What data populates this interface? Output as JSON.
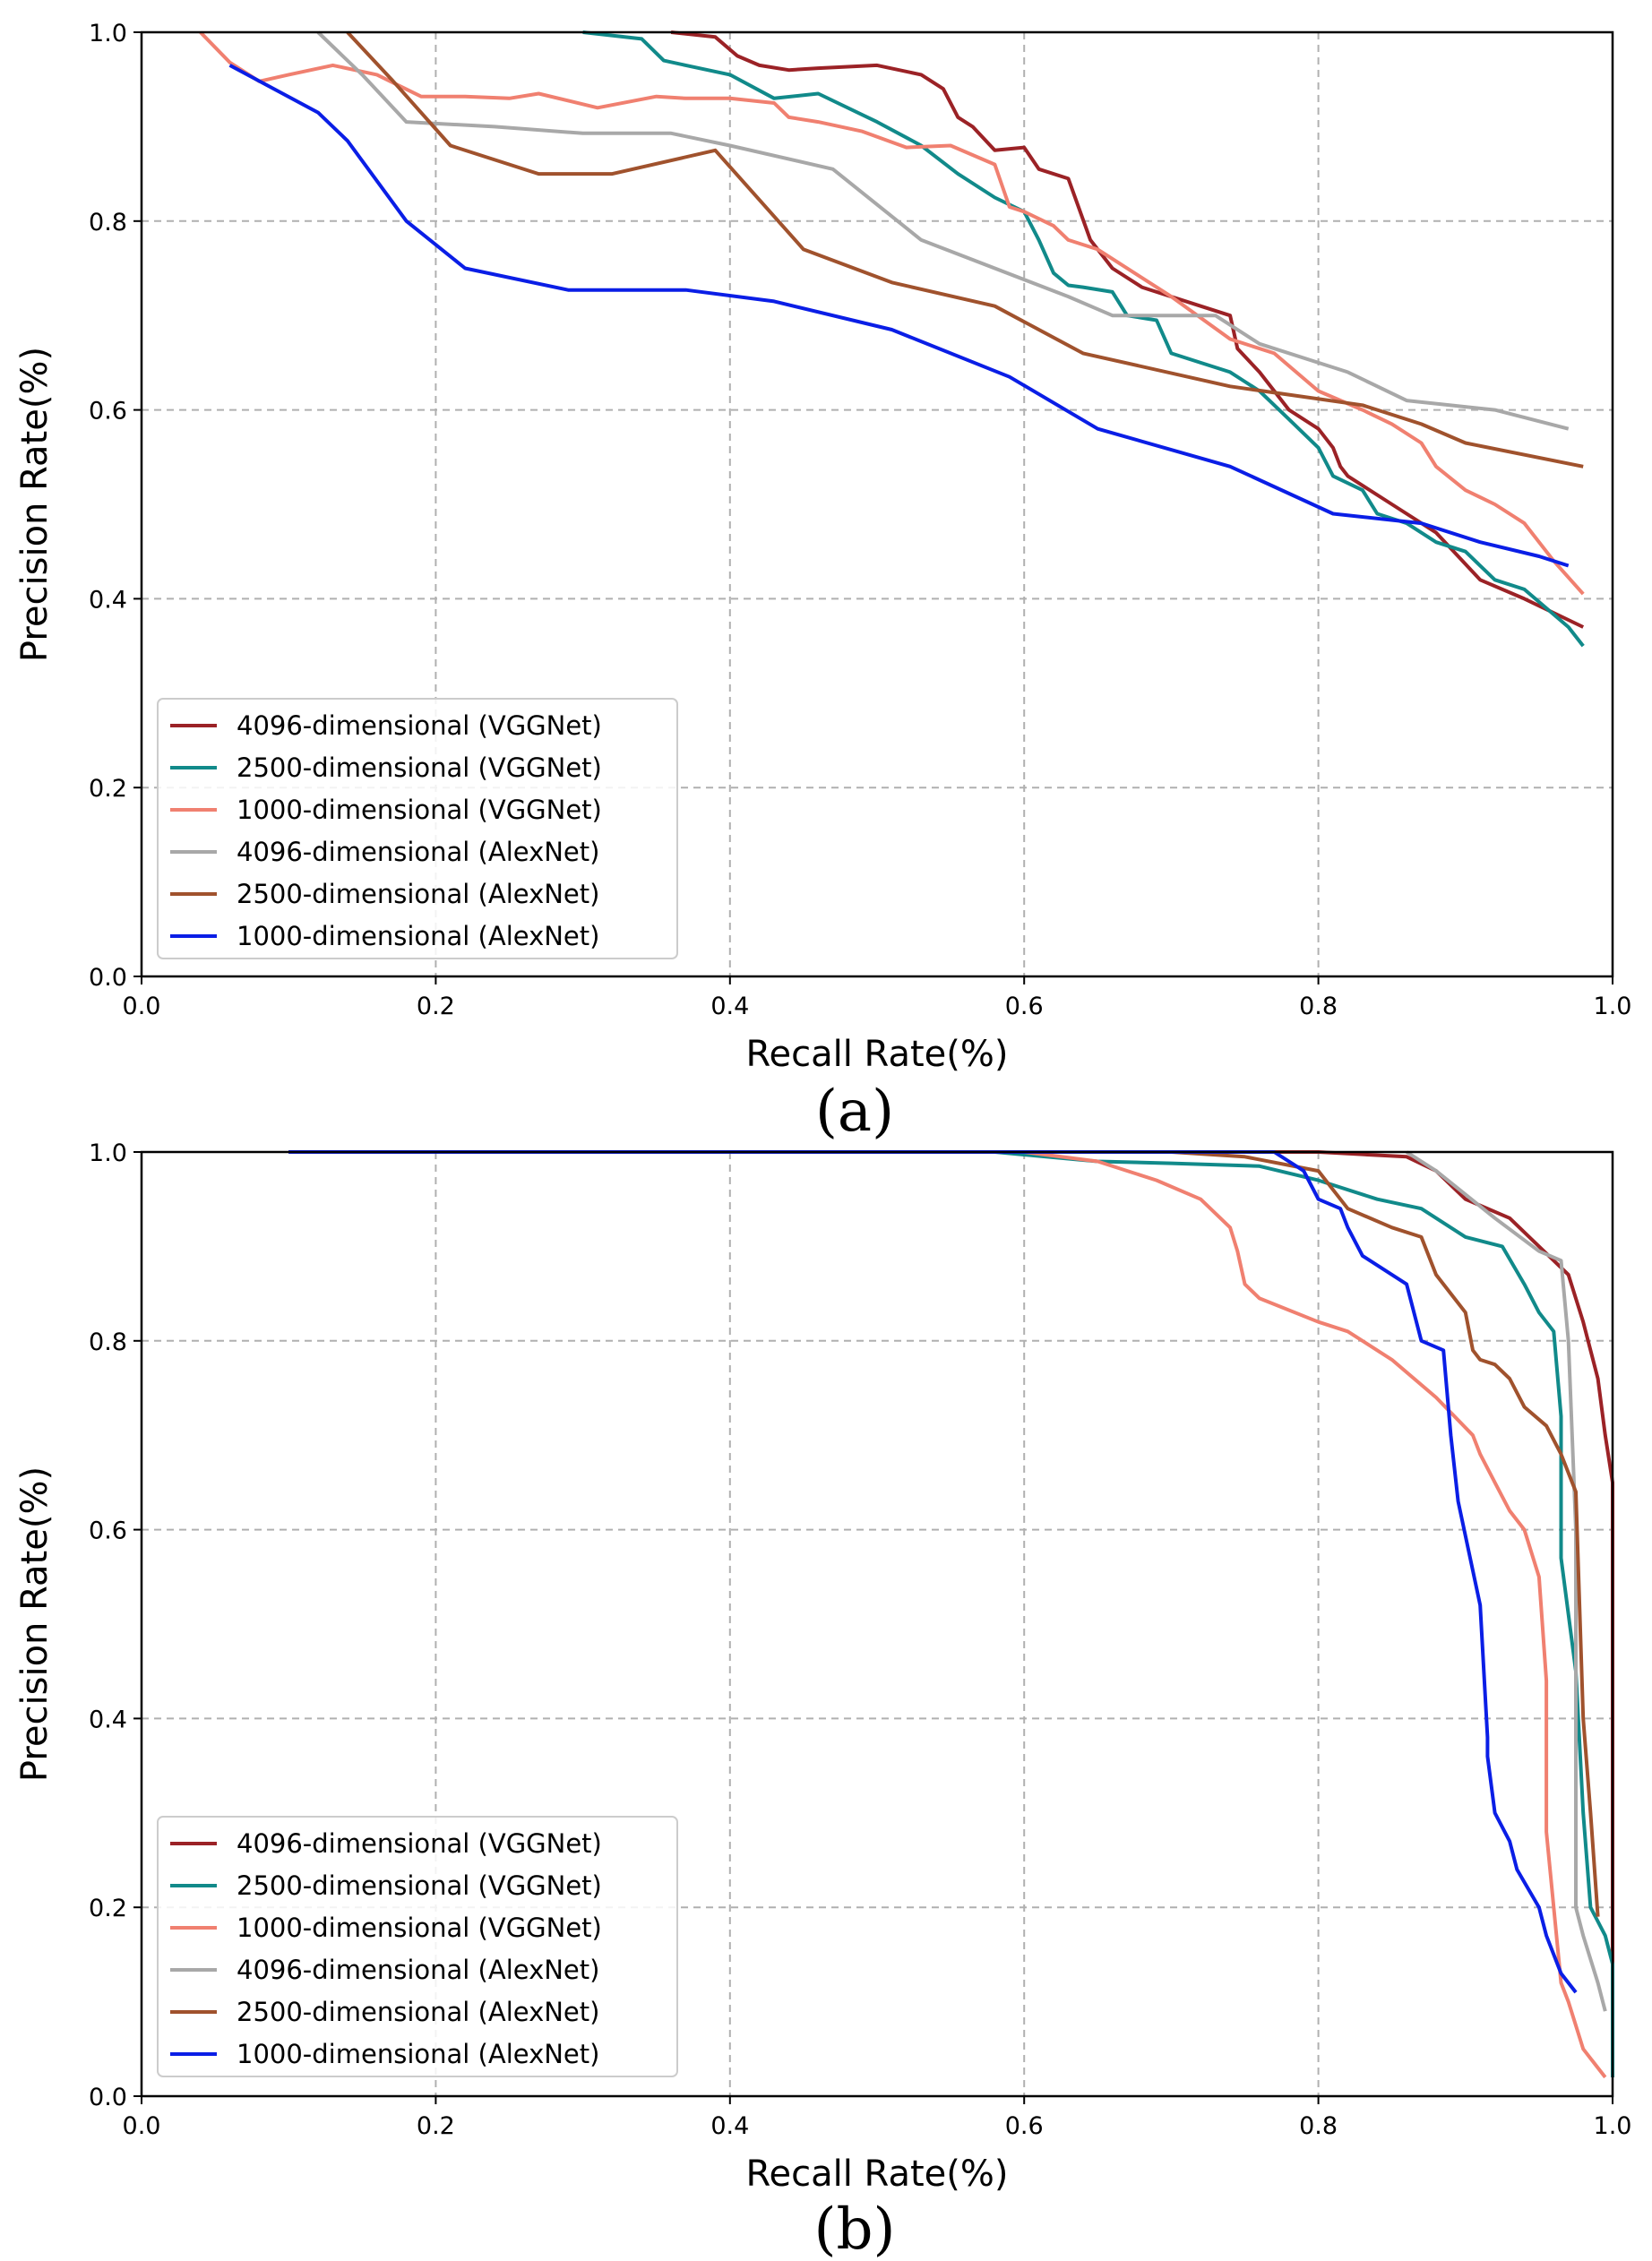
{
  "chart_data": [
    {
      "type": "line",
      "caption": "(a)",
      "xlabel": "Recall Rate(%)",
      "ylabel": "Precision Rate(%)",
      "xlim": [
        0.0,
        1.0
      ],
      "ylim": [
        0.0,
        1.0
      ],
      "xticks": [
        "0.0",
        "0.2",
        "0.4",
        "0.6",
        "0.8",
        "1.0"
      ],
      "yticks": [
        "0.0",
        "0.2",
        "0.4",
        "0.6",
        "0.8",
        "1.0"
      ],
      "grid": true,
      "legend_position": "lower-left",
      "series": [
        {
          "name": "4096-dimensional (VGGNet)",
          "color": "#9b2226",
          "x": [
            0.36,
            0.39,
            0.405,
            0.42,
            0.44,
            0.46,
            0.5,
            0.53,
            0.545,
            0.555,
            0.565,
            0.58,
            0.6,
            0.61,
            0.63,
            0.645,
            0.66,
            0.68,
            0.72,
            0.74,
            0.745,
            0.76,
            0.78,
            0.8,
            0.81,
            0.815,
            0.82,
            0.85,
            0.88,
            0.91,
            0.94,
            0.98
          ],
          "y": [
            1.0,
            0.995,
            0.975,
            0.965,
            0.96,
            0.962,
            0.965,
            0.955,
            0.94,
            0.91,
            0.9,
            0.875,
            0.878,
            0.855,
            0.845,
            0.78,
            0.75,
            0.73,
            0.71,
            0.7,
            0.665,
            0.64,
            0.6,
            0.58,
            0.56,
            0.54,
            0.53,
            0.5,
            0.47,
            0.42,
            0.4,
            0.37
          ]
        },
        {
          "name": "2500-dimensional (VGGNet)",
          "color": "#118a8a",
          "x": [
            0.3,
            0.34,
            0.355,
            0.37,
            0.4,
            0.43,
            0.46,
            0.5,
            0.53,
            0.555,
            0.58,
            0.6,
            0.61,
            0.62,
            0.63,
            0.64,
            0.66,
            0.67,
            0.69,
            0.7,
            0.72,
            0.74,
            0.75,
            0.76,
            0.78,
            0.8,
            0.81,
            0.83,
            0.84,
            0.86,
            0.88,
            0.9,
            0.92,
            0.94,
            0.97,
            0.98
          ],
          "y": [
            1.0,
            0.993,
            0.97,
            0.965,
            0.955,
            0.93,
            0.935,
            0.905,
            0.88,
            0.85,
            0.825,
            0.81,
            0.78,
            0.745,
            0.732,
            0.73,
            0.725,
            0.7,
            0.695,
            0.66,
            0.65,
            0.64,
            0.63,
            0.62,
            0.59,
            0.56,
            0.53,
            0.515,
            0.49,
            0.48,
            0.46,
            0.45,
            0.42,
            0.41,
            0.37,
            0.35
          ]
        },
        {
          "name": "1000-dimensional (VGGNet)",
          "color": "#f08070",
          "x": [
            0.04,
            0.06,
            0.08,
            0.1,
            0.13,
            0.16,
            0.19,
            0.22,
            0.25,
            0.27,
            0.31,
            0.35,
            0.37,
            0.4,
            0.43,
            0.44,
            0.46,
            0.49,
            0.52,
            0.55,
            0.58,
            0.59,
            0.6,
            0.62,
            0.63,
            0.65,
            0.7,
            0.74,
            0.77,
            0.8,
            0.83,
            0.85,
            0.87,
            0.88,
            0.9,
            0.92,
            0.94,
            0.96,
            0.98
          ],
          "y": [
            1.0,
            0.968,
            0.948,
            0.955,
            0.965,
            0.955,
            0.932,
            0.932,
            0.93,
            0.935,
            0.92,
            0.932,
            0.93,
            0.93,
            0.925,
            0.91,
            0.905,
            0.895,
            0.878,
            0.88,
            0.86,
            0.815,
            0.81,
            0.795,
            0.78,
            0.77,
            0.72,
            0.675,
            0.66,
            0.62,
            0.6,
            0.585,
            0.565,
            0.54,
            0.515,
            0.5,
            0.48,
            0.44,
            0.405
          ]
        },
        {
          "name": "4096-dimensional (AlexNet)",
          "color": "#a8a8a8",
          "x": [
            0.12,
            0.15,
            0.18,
            0.24,
            0.3,
            0.36,
            0.4,
            0.47,
            0.53,
            0.63,
            0.66,
            0.73,
            0.76,
            0.82,
            0.86,
            0.92,
            0.97
          ],
          "y": [
            1.0,
            0.955,
            0.905,
            0.9,
            0.893,
            0.893,
            0.88,
            0.855,
            0.78,
            0.72,
            0.7,
            0.7,
            0.67,
            0.64,
            0.61,
            0.6,
            0.58
          ]
        },
        {
          "name": "2500-dimensional (AlexNet)",
          "color": "#a0522d",
          "x": [
            0.14,
            0.17,
            0.21,
            0.27,
            0.32,
            0.39,
            0.45,
            0.51,
            0.58,
            0.64,
            0.74,
            0.83,
            0.87,
            0.9,
            0.98
          ],
          "y": [
            1.0,
            0.95,
            0.88,
            0.85,
            0.85,
            0.875,
            0.77,
            0.735,
            0.71,
            0.66,
            0.625,
            0.605,
            0.585,
            0.565,
            0.54
          ]
        },
        {
          "name": "1000-dimensional (AlexNet)",
          "color": "#0a1ee6",
          "x": [
            0.06,
            0.12,
            0.14,
            0.18,
            0.22,
            0.29,
            0.37,
            0.43,
            0.51,
            0.59,
            0.65,
            0.74,
            0.81,
            0.87,
            0.91,
            0.95,
            0.97
          ],
          "y": [
            0.965,
            0.915,
            0.885,
            0.8,
            0.75,
            0.727,
            0.727,
            0.715,
            0.685,
            0.635,
            0.58,
            0.54,
            0.49,
            0.48,
            0.46,
            0.445,
            0.435
          ]
        }
      ]
    },
    {
      "type": "line",
      "caption": "(b)",
      "xlabel": "Recall Rate(%)",
      "ylabel": "Precision Rate(%)",
      "xlim": [
        0.0,
        1.0
      ],
      "ylim": [
        0.0,
        1.0
      ],
      "xticks": [
        "0.0",
        "0.2",
        "0.4",
        "0.6",
        "0.8",
        "1.0"
      ],
      "yticks": [
        "0.0",
        "0.2",
        "0.4",
        "0.6",
        "0.8",
        "1.0"
      ],
      "grid": true,
      "legend_position": "lower-left",
      "series": [
        {
          "name": "4096-dimensional (VGGNet)",
          "color": "#9b2226",
          "x": [
            0.1,
            0.6,
            0.7,
            0.8,
            0.86,
            0.88,
            0.9,
            0.93,
            0.95,
            0.97,
            0.98,
            0.99,
            0.995,
            1.0,
            1.0,
            1.0
          ],
          "y": [
            1.0,
            1.0,
            1.0,
            1.0,
            0.995,
            0.98,
            0.95,
            0.93,
            0.9,
            0.87,
            0.82,
            0.76,
            0.7,
            0.65,
            0.3,
            0.02
          ]
        },
        {
          "name": "2500-dimensional (VGGNet)",
          "color": "#118a8a",
          "x": [
            0.1,
            0.58,
            0.65,
            0.7,
            0.76,
            0.8,
            0.84,
            0.87,
            0.9,
            0.925,
            0.94,
            0.95,
            0.96,
            0.965,
            0.965,
            0.975,
            0.98,
            0.985,
            0.995,
            1.0,
            1.0
          ],
          "y": [
            1.0,
            1.0,
            0.99,
            0.988,
            0.985,
            0.97,
            0.95,
            0.94,
            0.91,
            0.9,
            0.86,
            0.83,
            0.81,
            0.72,
            0.57,
            0.45,
            0.3,
            0.2,
            0.17,
            0.14,
            0.02
          ]
        },
        {
          "name": "1000-dimensional (VGGNet)",
          "color": "#f08070",
          "x": [
            0.1,
            0.6,
            0.65,
            0.69,
            0.72,
            0.74,
            0.745,
            0.75,
            0.76,
            0.8,
            0.82,
            0.85,
            0.88,
            0.905,
            0.91,
            0.92,
            0.93,
            0.94,
            0.95,
            0.955,
            0.955,
            0.96,
            0.965,
            0.97,
            0.98,
            0.99,
            0.995
          ],
          "y": [
            1.0,
            1.0,
            0.99,
            0.97,
            0.95,
            0.92,
            0.895,
            0.86,
            0.845,
            0.82,
            0.81,
            0.78,
            0.74,
            0.7,
            0.68,
            0.65,
            0.62,
            0.6,
            0.55,
            0.44,
            0.28,
            0.2,
            0.12,
            0.1,
            0.05,
            0.03,
            0.02
          ]
        },
        {
          "name": "4096-dimensional (AlexNet)",
          "color": "#a8a8a8",
          "x": [
            0.86,
            0.88,
            0.92,
            0.95,
            0.965,
            0.97,
            0.975,
            0.975,
            0.98,
            0.99,
            0.995
          ],
          "y": [
            1.0,
            0.98,
            0.93,
            0.895,
            0.885,
            0.8,
            0.6,
            0.2,
            0.17,
            0.12,
            0.09
          ]
        },
        {
          "name": "2500-dimensional (AlexNet)",
          "color": "#a0522d",
          "x": [
            0.1,
            0.7,
            0.75,
            0.8,
            0.81,
            0.82,
            0.85,
            0.87,
            0.88,
            0.89,
            0.9,
            0.905,
            0.91,
            0.92,
            0.93,
            0.94,
            0.955,
            0.965,
            0.975,
            0.98,
            0.985,
            0.99
          ],
          "y": [
            1.0,
            1.0,
            0.995,
            0.98,
            0.96,
            0.94,
            0.92,
            0.91,
            0.87,
            0.85,
            0.83,
            0.79,
            0.78,
            0.775,
            0.76,
            0.73,
            0.71,
            0.68,
            0.64,
            0.4,
            0.3,
            0.19
          ]
        },
        {
          "name": "1000-dimensional (AlexNet)",
          "color": "#0a1ee6",
          "x": [
            0.1,
            0.77,
            0.79,
            0.8,
            0.815,
            0.82,
            0.83,
            0.86,
            0.87,
            0.885,
            0.89,
            0.895,
            0.91,
            0.915,
            0.915,
            0.92,
            0.93,
            0.935,
            0.95,
            0.955,
            0.965,
            0.975
          ],
          "y": [
            1.0,
            1.0,
            0.98,
            0.95,
            0.94,
            0.92,
            0.89,
            0.86,
            0.8,
            0.79,
            0.7,
            0.63,
            0.52,
            0.38,
            0.36,
            0.3,
            0.27,
            0.24,
            0.2,
            0.17,
            0.13,
            0.11
          ]
        }
      ]
    }
  ]
}
